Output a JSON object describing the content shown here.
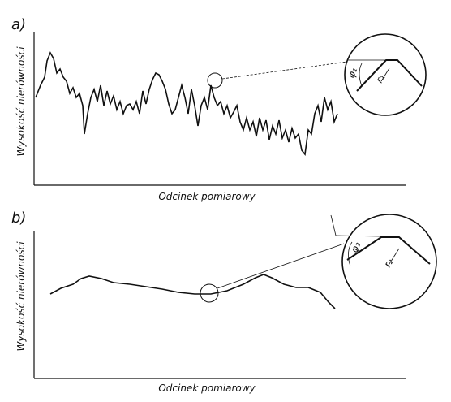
{
  "panels": [
    {
      "label": "a)",
      "y_axis_label": "Wysokość nierówności",
      "x_axis_label": "Odcinek pomiarowy",
      "detail_labels": [
        "r₁",
        "φ₁"
      ]
    },
    {
      "label": "b)",
      "y_axis_label": "Wysokość nierówności",
      "x_axis_label": "Odcinek pomiarowy",
      "detail_labels": [
        "r₂",
        "φ₂"
      ]
    }
  ]
}
